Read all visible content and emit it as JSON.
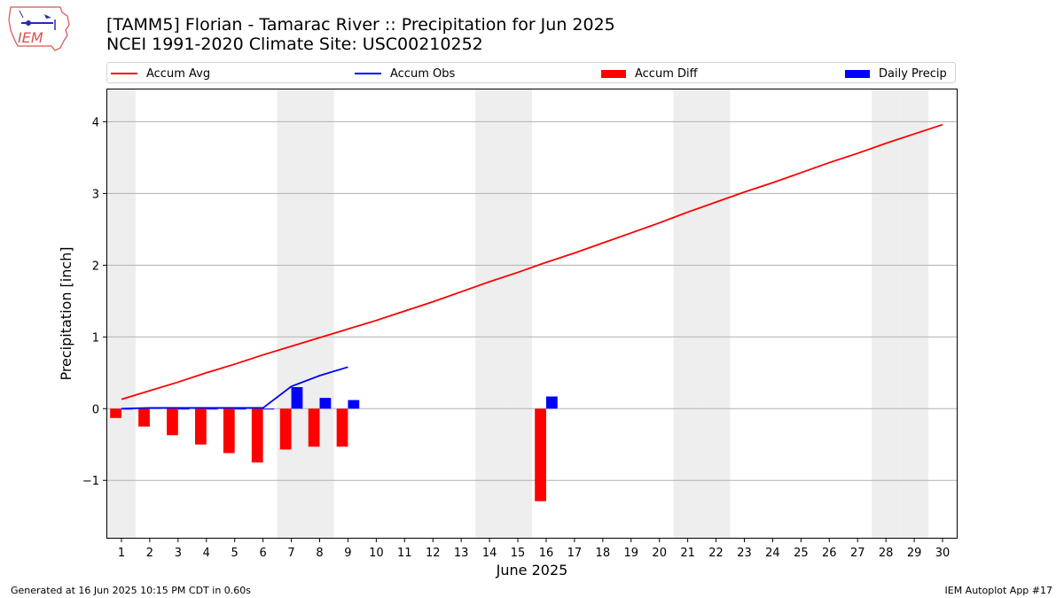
{
  "header": {
    "title_line1": "[TAMM5] Florian - Tamarac River :: Precipitation for Jun 2025",
    "title_line2": "NCEI 1991-2020 Climate Site: USC00210252",
    "logo_text": "IEM"
  },
  "footer": {
    "generated": "Generated at 16 Jun 2025 10:15 PM CDT in 0.60s",
    "app": "IEM Autoplot App #17"
  },
  "colors": {
    "avg": "#ff0000",
    "obs": "#0000ff",
    "diff": "#ff0000",
    "daily": "#0000ff",
    "weekend_band": "#eeeeee",
    "grid": "#b0b0b0"
  },
  "chart_data": {
    "type": "bar",
    "title": "[TAMM5] Florian - Tamarac River :: Precipitation for Jun 2025",
    "subtitle": "NCEI 1991-2020 Climate Site: USC00210252",
    "xlabel": "June 2025",
    "ylabel": "Precipitation [inch]",
    "xlim": [
      0.5,
      30.5
    ],
    "ylim": [
      -1.8,
      4.45
    ],
    "x_ticks": [
      1,
      2,
      3,
      4,
      5,
      6,
      7,
      8,
      9,
      10,
      11,
      12,
      13,
      14,
      15,
      16,
      17,
      18,
      19,
      20,
      21,
      22,
      23,
      24,
      25,
      26,
      27,
      28,
      29,
      30
    ],
    "y_ticks": [
      -1,
      0,
      1,
      2,
      3,
      4
    ],
    "y_tick_labels": [
      "−1",
      "0",
      "1",
      "2",
      "3",
      "4"
    ],
    "grid": "horizontal",
    "legend_position": "top",
    "weekend_days": [
      1,
      7,
      8,
      14,
      15,
      21,
      22,
      28,
      29
    ],
    "days": [
      1,
      2,
      3,
      4,
      5,
      6,
      7,
      8,
      9,
      10,
      11,
      12,
      13,
      14,
      15,
      16,
      17,
      18,
      19,
      20,
      21,
      22,
      23,
      24,
      25,
      26,
      27,
      28,
      29,
      30
    ],
    "series": [
      {
        "name": "Accum Avg",
        "kind": "line",
        "values": [
          0.13,
          0.25,
          0.37,
          0.5,
          0.62,
          0.75,
          0.87,
          0.99,
          1.11,
          1.23,
          1.36,
          1.49,
          1.63,
          1.77,
          1.9,
          2.04,
          2.17,
          2.31,
          2.45,
          2.59,
          2.74,
          2.88,
          3.02,
          3.15,
          3.29,
          3.43,
          3.56,
          3.7,
          3.83,
          3.96
        ]
      },
      {
        "name": "Accum Obs",
        "kind": "line",
        "days": [
          1,
          2,
          3,
          4,
          5,
          6,
          7,
          8,
          9
        ],
        "values": [
          0.0,
          0.01,
          0.01,
          0.01,
          0.01,
          0.01,
          0.31,
          0.46,
          0.58
        ]
      },
      {
        "name": "Accum Diff",
        "kind": "bar",
        "values": [
          -0.13,
          -0.25,
          -0.37,
          -0.5,
          -0.62,
          -0.75,
          -0.57,
          -0.53,
          -0.53,
          null,
          null,
          null,
          null,
          null,
          null,
          -1.29,
          null,
          null,
          null,
          null,
          null,
          null,
          null,
          null,
          null,
          null,
          null,
          null,
          null,
          null
        ]
      },
      {
        "name": "Daily Precip",
        "kind": "bar",
        "values": [
          0,
          0.01,
          0,
          0,
          0,
          0,
          0.3,
          0.15,
          0.12,
          null,
          null,
          null,
          null,
          null,
          null,
          0.17,
          null,
          null,
          null,
          null,
          null,
          null,
          null,
          null,
          null,
          null,
          null,
          null,
          null,
          null
        ]
      }
    ]
  }
}
